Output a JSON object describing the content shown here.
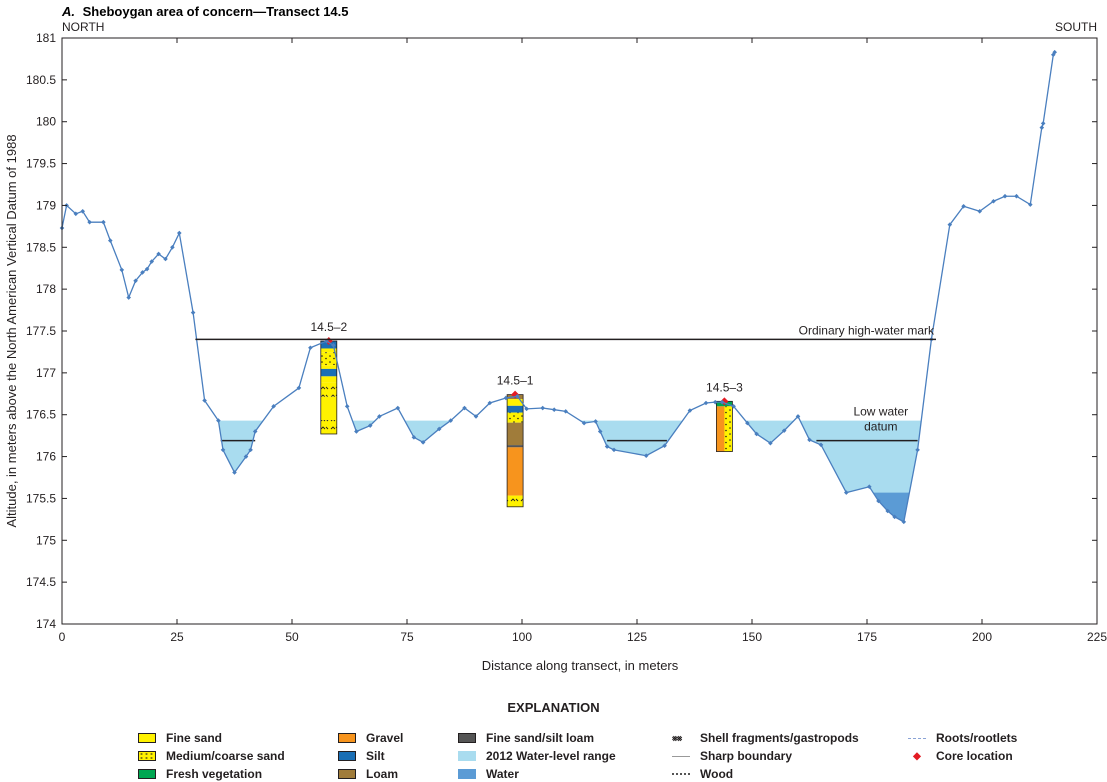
{
  "chart_data": {
    "type": "line",
    "panel_letter": "A.",
    "title": "Sheboygan area of concern—Transect 14.5",
    "left_direction": "NORTH",
    "right_direction": "SOUTH",
    "xlabel": "Distance along transect, in meters",
    "ylabel": "Altitude, in meters above the North American Vertical Datum of 1988",
    "xlim": [
      0,
      225
    ],
    "ylim": [
      174,
      181
    ],
    "xticks": [
      "0",
      "25",
      "50",
      "75",
      "100",
      "125",
      "150",
      "175",
      "200",
      "225"
    ],
    "yticks": [
      "174",
      "174.5",
      "175",
      "175.5",
      "176",
      "176.5",
      "177",
      "177.5",
      "178",
      "178.5",
      "179",
      "179.5",
      "180",
      "180.5",
      "181"
    ],
    "colors": {
      "profile": "#4a7fbf",
      "water_range": "#a9dcef",
      "water": "#5b9bd5",
      "fine_sand": "#fff200",
      "gravel": "#f7941d",
      "silt": "#1a6fb5",
      "loam": "#a07c3a",
      "fresh_vegetation": "#00a651",
      "fine_sand_silt_loam": "#555555",
      "core_location": "#e31b23"
    },
    "profile_points": [
      [
        0,
        178.73
      ],
      [
        1,
        179.0
      ],
      [
        3,
        178.9
      ],
      [
        4.5,
        178.93
      ],
      [
        6,
        178.8
      ],
      [
        9,
        178.8
      ],
      [
        10.5,
        178.58
      ],
      [
        13,
        178.23
      ],
      [
        14.5,
        177.9
      ],
      [
        16,
        178.1
      ],
      [
        17.5,
        178.2
      ],
      [
        18.5,
        178.24
      ],
      [
        19.5,
        178.33
      ],
      [
        21,
        178.42
      ],
      [
        22.5,
        178.36
      ],
      [
        24,
        178.5
      ],
      [
        25.5,
        178.67
      ],
      [
        28.5,
        177.72
      ],
      [
        31,
        176.67
      ],
      [
        34,
        176.43
      ],
      [
        35,
        176.08
      ],
      [
        37.5,
        175.81
      ],
      [
        40,
        176.0
      ],
      [
        41,
        176.08
      ],
      [
        42,
        176.3
      ],
      [
        46,
        176.6
      ],
      [
        51.5,
        176.82
      ],
      [
        54,
        177.3
      ],
      [
        57.5,
        177.38
      ],
      [
        59,
        177.33
      ],
      [
        62,
        176.6
      ],
      [
        64,
        176.3
      ],
      [
        67,
        176.37
      ],
      [
        69,
        176.48
      ],
      [
        73,
        176.58
      ],
      [
        76.5,
        176.23
      ],
      [
        78.5,
        176.17
      ],
      [
        82,
        176.33
      ],
      [
        84.5,
        176.43
      ],
      [
        87.5,
        176.58
      ],
      [
        90,
        176.48
      ],
      [
        93,
        176.64
      ],
      [
        96.5,
        176.7
      ],
      [
        99,
        176.72
      ],
      [
        101,
        176.57
      ],
      [
        104.5,
        176.58
      ],
      [
        107,
        176.56
      ],
      [
        109.5,
        176.54
      ],
      [
        113.5,
        176.4
      ],
      [
        116,
        176.42
      ],
      [
        117,
        176.3
      ],
      [
        118.5,
        176.12
      ],
      [
        120,
        176.08
      ],
      [
        127,
        176.01
      ],
      [
        131,
        176.13
      ],
      [
        136.5,
        176.55
      ],
      [
        140,
        176.64
      ],
      [
        142,
        176.65
      ],
      [
        143.5,
        176.65
      ],
      [
        146,
        176.6
      ],
      [
        149,
        176.4
      ],
      [
        151,
        176.27
      ],
      [
        154,
        176.16
      ],
      [
        157,
        176.31
      ],
      [
        160,
        176.48
      ],
      [
        162.5,
        176.2
      ],
      [
        165,
        176.14
      ],
      [
        170.5,
        175.57
      ],
      [
        175.5,
        175.64
      ],
      [
        177.5,
        175.47
      ],
      [
        179.5,
        175.35
      ],
      [
        181,
        175.28
      ],
      [
        183,
        175.22
      ],
      [
        186,
        176.08
      ],
      [
        189,
        177.4
      ],
      [
        193,
        178.77
      ],
      [
        196,
        178.99
      ],
      [
        199.5,
        178.93
      ],
      [
        202.5,
        179.05
      ],
      [
        205,
        179.11
      ],
      [
        207.5,
        179.11
      ],
      [
        210.5,
        179.01
      ],
      [
        213,
        179.93
      ],
      [
        213.3,
        179.98
      ],
      [
        215.5,
        180.8
      ],
      [
        215.8,
        180.83
      ]
    ],
    "ordinary_high_water": {
      "label": "Ordinary high-water mark",
      "y": 177.4,
      "x_range": [
        29,
        190
      ]
    },
    "low_water_datum": {
      "label_line1": "Low water",
      "label_line2": "datum",
      "y": 176.19
    },
    "low_water_segments": [
      [
        34.5,
        42
      ],
      [
        118.5,
        131.5
      ],
      [
        164,
        186
      ]
    ],
    "water_level_range": {
      "top": 176.43,
      "bottom": 176.19
    },
    "cores": [
      {
        "label": "14.5–2",
        "x": 58,
        "top": 177.38,
        "bottom": 176.27
      },
      {
        "label": "14.5–1",
        "x": 98.5,
        "top": 176.74,
        "bottom": 175.4
      },
      {
        "label": "14.5–3",
        "x": 144,
        "top": 176.66,
        "bottom": 176.06
      }
    ]
  },
  "legend": {
    "title": "EXPLANATION",
    "items": [
      {
        "label": "Fine sand",
        "kind": "fine_sand"
      },
      {
        "label": "Medium/coarse sand",
        "kind": "coarse_sand"
      },
      {
        "label": "Fresh vegetation",
        "kind": "fresh_vegetation"
      },
      {
        "label": "Gravel",
        "kind": "gravel"
      },
      {
        "label": "Silt",
        "kind": "silt"
      },
      {
        "label": "Loam",
        "kind": "loam"
      },
      {
        "label": "Fine sand/silt loam",
        "kind": "fine_sand_silt_loam"
      },
      {
        "label": "2012 Water-level range",
        "kind": "water_range"
      },
      {
        "label": "Water",
        "kind": "water"
      },
      {
        "label": "Shell fragments/gastropods",
        "kind": "shell"
      },
      {
        "label": "Sharp boundary",
        "kind": "sharp"
      },
      {
        "label": "Wood",
        "kind": "wood"
      },
      {
        "label": "Roots/rootlets",
        "kind": "roots"
      },
      {
        "label": "Core location",
        "kind": "core"
      }
    ]
  }
}
